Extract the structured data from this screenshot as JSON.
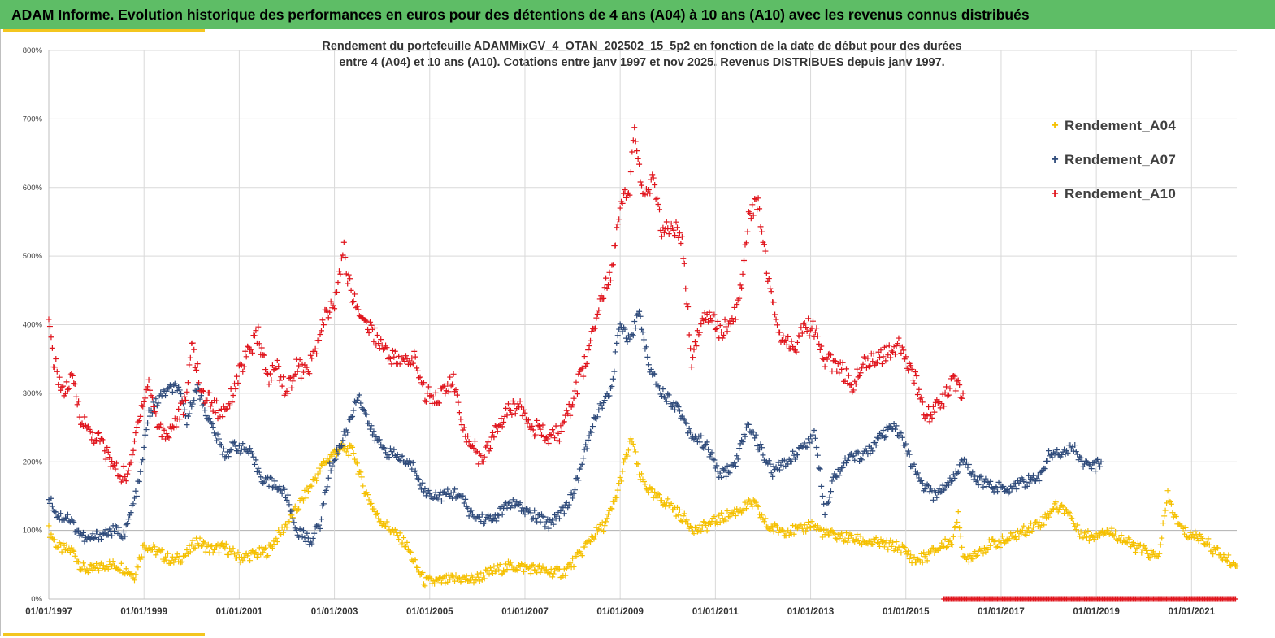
{
  "banner": {
    "title": "ADAM Informe. Evolution historique des performances en euros pour des détentions de 4 ans (A04) à 10 ans (A10) avec les revenus connus distribués"
  },
  "colors": {
    "banner": "#5ebd66",
    "accent": "#f3c61f",
    "A04": "#f5c000",
    "A07": "#2e4a7a",
    "A10": "#e0141c"
  },
  "chart_data": {
    "type": "scatter",
    "title_line1": "Rendement du portefeuille ADAMMixGV_4_OTAN_202502_15_5p2  en fonction de la date de début pour des durées",
    "title_line2": "entre 4 (A04) et 10 ans (A10). Cotations entre janv 1997 et nov 2025. Revenus DISTRIBUES depuis janv 1997.",
    "marker": "+",
    "ylim": [
      0,
      800
    ],
    "y_ticks": [
      "0%",
      "100%",
      "200%",
      "300%",
      "400%",
      "500%",
      "600%",
      "700%",
      "800%"
    ],
    "y_tick_values": [
      0,
      100,
      200,
      300,
      400,
      500,
      600,
      700,
      800
    ],
    "xlim": [
      "1997-01-01",
      "2021-12-31"
    ],
    "x_ticks": [
      "01/01/1997",
      "01/01/1999",
      "01/01/2001",
      "01/01/2003",
      "01/01/2005",
      "01/01/2007",
      "01/01/2009",
      "01/01/2011",
      "01/01/2013",
      "01/01/2015",
      "01/01/2017",
      "01/01/2019",
      "01/01/2021"
    ],
    "x_tick_years": [
      1997,
      1999,
      2001,
      2003,
      2005,
      2007,
      2009,
      2011,
      2013,
      2015,
      2017,
      2019,
      2021
    ],
    "grid": true,
    "legend_position": "top-right",
    "series": [
      {
        "name": "Rendement_A04",
        "points": [
          [
            1997.0,
            100
          ],
          [
            1997.2,
            75
          ],
          [
            1997.5,
            70
          ],
          [
            1997.7,
            45
          ],
          [
            1997.9,
            42
          ],
          [
            1998.2,
            50
          ],
          [
            1998.5,
            48
          ],
          [
            1998.8,
            35
          ],
          [
            1999.0,
            80
          ],
          [
            1999.3,
            68
          ],
          [
            1999.6,
            55
          ],
          [
            1999.9,
            65
          ],
          [
            2000.1,
            85
          ],
          [
            2000.4,
            72
          ],
          [
            2000.7,
            75
          ],
          [
            2001.0,
            60
          ],
          [
            2001.3,
            65
          ],
          [
            2001.6,
            70
          ],
          [
            2001.9,
            100
          ],
          [
            2002.2,
            130
          ],
          [
            2002.5,
            165
          ],
          [
            2002.8,
            200
          ],
          [
            2003.1,
            220
          ],
          [
            2003.4,
            215
          ],
          [
            2003.6,
            165
          ],
          [
            2003.9,
            120
          ],
          [
            2004.2,
            100
          ],
          [
            2004.5,
            80
          ],
          [
            2004.7,
            50
          ],
          [
            2004.9,
            25
          ],
          [
            2005.2,
            25
          ],
          [
            2005.6,
            30
          ],
          [
            2005.9,
            28
          ],
          [
            2006.3,
            40
          ],
          [
            2006.7,
            48
          ],
          [
            2007.1,
            45
          ],
          [
            2007.5,
            40
          ],
          [
            2007.8,
            38
          ],
          [
            2008.1,
            60
          ],
          [
            2008.4,
            90
          ],
          [
            2008.7,
            110
          ],
          [
            2008.9,
            145
          ],
          [
            2009.1,
            200
          ],
          [
            2009.25,
            235
          ],
          [
            2009.4,
            180
          ],
          [
            2009.7,
            150
          ],
          [
            2010.0,
            140
          ],
          [
            2010.3,
            120
          ],
          [
            2010.6,
            100
          ],
          [
            2010.9,
            110
          ],
          [
            2011.2,
            120
          ],
          [
            2011.5,
            130
          ],
          [
            2011.8,
            140
          ],
          [
            2012.1,
            105
          ],
          [
            2012.4,
            100
          ],
          [
            2012.8,
            100
          ],
          [
            2013.0,
            110
          ],
          [
            2013.3,
            95
          ],
          [
            2013.7,
            90
          ],
          [
            2014.1,
            85
          ],
          [
            2014.5,
            80
          ],
          [
            2014.9,
            75
          ],
          [
            2015.2,
            55
          ],
          [
            2015.5,
            65
          ],
          [
            2015.8,
            80
          ],
          [
            2016.0,
            85
          ],
          [
            2016.1,
            130
          ],
          [
            2016.2,
            55
          ],
          [
            2016.5,
            70
          ],
          [
            2016.8,
            80
          ],
          [
            2017.1,
            85
          ],
          [
            2017.5,
            100
          ],
          [
            2017.9,
            115
          ],
          [
            2018.1,
            135
          ],
          [
            2018.4,
            130
          ],
          [
            2018.6,
            100
          ],
          [
            2018.9,
            90
          ],
          [
            2019.1,
            100
          ],
          [
            2019.4,
            95
          ],
          [
            2019.7,
            80
          ],
          [
            2020.0,
            70
          ],
          [
            2020.3,
            60
          ],
          [
            2020.5,
            150
          ],
          [
            2020.7,
            110
          ],
          [
            2020.9,
            95
          ],
          [
            2021.2,
            90
          ],
          [
            2021.5,
            70
          ],
          [
            2021.8,
            55
          ],
          [
            2021.95,
            48
          ]
        ]
      },
      {
        "name": "Rendement_A07",
        "points": [
          [
            1997.0,
            150
          ],
          [
            1997.2,
            120
          ],
          [
            1997.4,
            120
          ],
          [
            1997.6,
            100
          ],
          [
            1997.8,
            85
          ],
          [
            1998.1,
            95
          ],
          [
            1998.4,
            100
          ],
          [
            1998.6,
            95
          ],
          [
            1998.9,
            170
          ],
          [
            1999.1,
            270
          ],
          [
            1999.4,
            300
          ],
          [
            1999.7,
            310
          ],
          [
            1999.9,
            260
          ],
          [
            2000.1,
            310
          ],
          [
            2000.4,
            255
          ],
          [
            2000.7,
            210
          ],
          [
            2000.9,
            225
          ],
          [
            2001.2,
            215
          ],
          [
            2001.5,
            175
          ],
          [
            2001.8,
            165
          ],
          [
            2002.0,
            150
          ],
          [
            2002.2,
            100
          ],
          [
            2002.5,
            85
          ],
          [
            2002.7,
            110
          ],
          [
            2002.9,
            190
          ],
          [
            2003.1,
            220
          ],
          [
            2003.3,
            255
          ],
          [
            2003.5,
            300
          ],
          [
            2003.8,
            240
          ],
          [
            2004.1,
            215
          ],
          [
            2004.4,
            205
          ],
          [
            2004.7,
            190
          ],
          [
            2004.9,
            155
          ],
          [
            2005.2,
            150
          ],
          [
            2005.6,
            155
          ],
          [
            2005.9,
            120
          ],
          [
            2006.3,
            115
          ],
          [
            2006.7,
            140
          ],
          [
            2007.1,
            125
          ],
          [
            2007.5,
            110
          ],
          [
            2007.8,
            130
          ],
          [
            2008.0,
            150
          ],
          [
            2008.2,
            200
          ],
          [
            2008.5,
            270
          ],
          [
            2008.8,
            300
          ],
          [
            2009.0,
            405
          ],
          [
            2009.2,
            375
          ],
          [
            2009.4,
            420
          ],
          [
            2009.6,
            340
          ],
          [
            2009.9,
            300
          ],
          [
            2010.2,
            280
          ],
          [
            2010.5,
            240
          ],
          [
            2010.8,
            225
          ],
          [
            2011.1,
            180
          ],
          [
            2011.4,
            195
          ],
          [
            2011.7,
            255
          ],
          [
            2011.9,
            225
          ],
          [
            2012.2,
            185
          ],
          [
            2012.5,
            200
          ],
          [
            2012.8,
            220
          ],
          [
            2013.1,
            240
          ],
          [
            2013.3,
            130
          ],
          [
            2013.5,
            180
          ],
          [
            2013.8,
            205
          ],
          [
            2014.1,
            210
          ],
          [
            2014.4,
            230
          ],
          [
            2014.7,
            250
          ],
          [
            2014.9,
            240
          ],
          [
            2015.1,
            200
          ],
          [
            2015.3,
            170
          ],
          [
            2015.6,
            150
          ],
          [
            2015.9,
            170
          ],
          [
            2016.2,
            200
          ],
          [
            2016.5,
            175
          ],
          [
            2016.8,
            165
          ],
          [
            2017.1,
            160
          ],
          [
            2017.4,
            170
          ],
          [
            2017.8,
            175
          ],
          [
            2018.0,
            210
          ],
          [
            2018.3,
            215
          ],
          [
            2018.5,
            225
          ],
          [
            2018.7,
            200
          ],
          [
            2018.9,
            190
          ],
          [
            2019.1,
            200
          ]
        ]
      },
      {
        "name": "Rendement_A10",
        "points": [
          [
            1997.0,
            400
          ],
          [
            1997.1,
            350
          ],
          [
            1997.3,
            300
          ],
          [
            1997.5,
            320
          ],
          [
            1997.7,
            260
          ],
          [
            1997.9,
            240
          ],
          [
            1998.1,
            230
          ],
          [
            1998.3,
            200
          ],
          [
            1998.5,
            180
          ],
          [
            1998.7,
            185
          ],
          [
            1998.9,
            270
          ],
          [
            1999.1,
            315
          ],
          [
            1999.3,
            250
          ],
          [
            1999.5,
            240
          ],
          [
            1999.7,
            265
          ],
          [
            1999.9,
            290
          ],
          [
            2000.0,
            380
          ],
          [
            2000.2,
            300
          ],
          [
            2000.4,
            290
          ],
          [
            2000.6,
            270
          ],
          [
            2000.8,
            290
          ],
          [
            2001.0,
            330
          ],
          [
            2001.2,
            360
          ],
          [
            2001.4,
            385
          ],
          [
            2001.6,
            320
          ],
          [
            2001.8,
            340
          ],
          [
            2002.0,
            300
          ],
          [
            2002.2,
            340
          ],
          [
            2002.4,
            330
          ],
          [
            2002.6,
            360
          ],
          [
            2002.8,
            410
          ],
          [
            2003.0,
            430
          ],
          [
            2003.1,
            470
          ],
          [
            2003.2,
            510
          ],
          [
            2003.3,
            460
          ],
          [
            2003.5,
            420
          ],
          [
            2003.8,
            390
          ],
          [
            2004.1,
            360
          ],
          [
            2004.4,
            345
          ],
          [
            2004.7,
            350
          ],
          [
            2004.9,
            300
          ],
          [
            2005.2,
            295
          ],
          [
            2005.5,
            320
          ],
          [
            2005.7,
            240
          ],
          [
            2005.9,
            230
          ],
          [
            2006.1,
            195
          ],
          [
            2006.3,
            235
          ],
          [
            2006.6,
            270
          ],
          [
            2006.9,
            285
          ],
          [
            2007.2,
            250
          ],
          [
            2007.5,
            235
          ],
          [
            2007.8,
            245
          ],
          [
            2008.0,
            290
          ],
          [
            2008.2,
            330
          ],
          [
            2008.4,
            380
          ],
          [
            2008.6,
            440
          ],
          [
            2008.8,
            470
          ],
          [
            2009.0,
            580
          ],
          [
            2009.2,
            600
          ],
          [
            2009.3,
            680
          ],
          [
            2009.5,
            580
          ],
          [
            2009.7,
            610
          ],
          [
            2009.9,
            530
          ],
          [
            2010.1,
            550
          ],
          [
            2010.3,
            520
          ],
          [
            2010.5,
            350
          ],
          [
            2010.7,
            400
          ],
          [
            2010.9,
            420
          ],
          [
            2011.1,
            390
          ],
          [
            2011.3,
            400
          ],
          [
            2011.5,
            430
          ],
          [
            2011.7,
            560
          ],
          [
            2011.9,
            580
          ],
          [
            2012.0,
            520
          ],
          [
            2012.2,
            430
          ],
          [
            2012.4,
            380
          ],
          [
            2012.7,
            370
          ],
          [
            2012.9,
            400
          ],
          [
            2013.1,
            390
          ],
          [
            2013.3,
            350
          ],
          [
            2013.6,
            340
          ],
          [
            2013.9,
            310
          ],
          [
            2014.1,
            350
          ],
          [
            2014.4,
            350
          ],
          [
            2014.7,
            360
          ],
          [
            2014.9,
            370
          ],
          [
            2015.2,
            320
          ],
          [
            2015.4,
            260
          ],
          [
            2015.6,
            280
          ],
          [
            2015.8,
            290
          ],
          [
            2016.0,
            320
          ],
          [
            2016.2,
            300
          ]
        ]
      },
      {
        "name": "",
        "description_style": "baseline",
        "points_range": [
          2015.8,
          2021.95
        ],
        "value": 0
      }
    ]
  }
}
